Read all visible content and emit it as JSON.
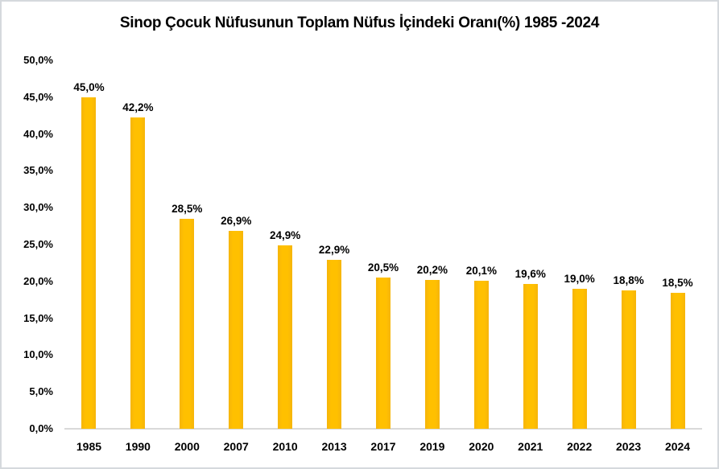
{
  "chart_data": {
    "type": "bar",
    "title": "Sinop Çocuk Nüfusunun Toplam Nüfus İçindeki Oranı(%) 1985 -2024",
    "categories": [
      "1985",
      "1990",
      "2000",
      "2007",
      "2010",
      "2013",
      "2017",
      "2019",
      "2020",
      "2021",
      "2022",
      "2023",
      "2024"
    ],
    "values": [
      45.0,
      42.2,
      28.5,
      26.9,
      24.9,
      22.9,
      20.5,
      20.2,
      20.1,
      19.6,
      19.0,
      18.8,
      18.5
    ],
    "data_labels": [
      "45,0%",
      "42,2%",
      "28,5%",
      "26,9%",
      "24,9%",
      "22,9%",
      "20,5%",
      "20,2%",
      "20,1%",
      "19,6%",
      "19,0%",
      "18,8%",
      "18,5%"
    ],
    "xlabel": "",
    "ylabel": "",
    "ylim": [
      0,
      50
    ],
    "y_step": 5,
    "y_tick_labels": [
      "0,0%",
      "5,0%",
      "10,0%",
      "15,0%",
      "20,0%",
      "25,0%",
      "30,0%",
      "35,0%",
      "40,0%",
      "45,0%",
      "50,0%"
    ],
    "grid": "off",
    "legend": "none",
    "bar_color": "#FFC000",
    "axis_line_color": "#D9D9D9",
    "label_color": "#000000",
    "background_color": "#FFFFFF"
  }
}
